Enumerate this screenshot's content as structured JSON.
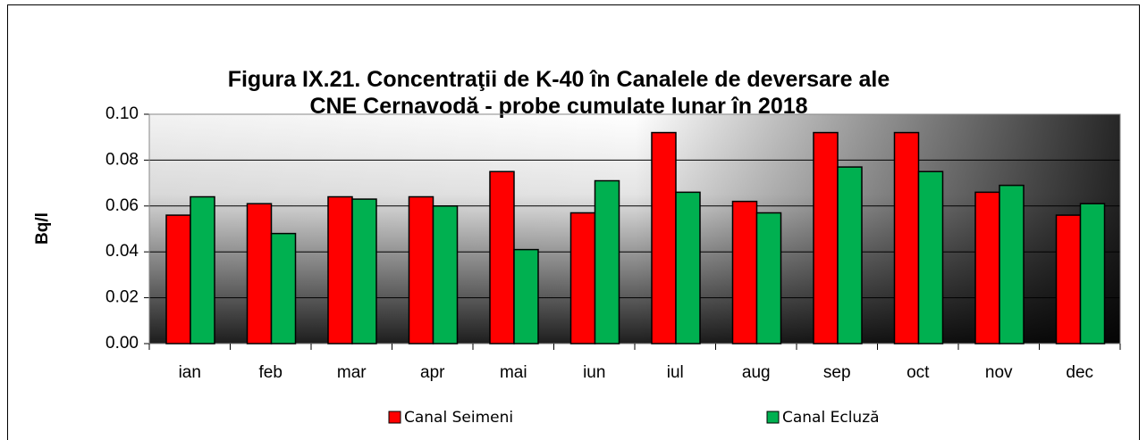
{
  "chart_data": {
    "type": "bar",
    "title": "Figura IX.21. Concentraţii de K-40 în Canalele de deversare ale CNE Cernavodă - probe cumulate lunar  în 2018",
    "y_label": "Bq/l",
    "categories": [
      "ian",
      "feb",
      "mar",
      "apr",
      "mai",
      "iun",
      "iul",
      "aug",
      "sep",
      "oct",
      "nov",
      "dec"
    ],
    "series": [
      {
        "name": "Canal Seimeni",
        "color": "#ff0000",
        "values": [
          0.056,
          0.061,
          0.064,
          0.064,
          0.075,
          0.057,
          0.092,
          0.062,
          0.092,
          0.092,
          0.066,
          0.056
        ]
      },
      {
        "name": "Canal Ecluză",
        "color": "#00b050",
        "values": [
          0.064,
          0.048,
          0.063,
          0.06,
          0.041,
          0.071,
          0.066,
          0.057,
          0.077,
          0.075,
          0.069,
          0.061
        ]
      }
    ],
    "ylim": [
      0,
      0.1
    ],
    "yticks": [
      {
        "value": 0,
        "label": "0.00"
      },
      {
        "value": 0.02,
        "label": "0.02"
      },
      {
        "value": 0.04,
        "label": "0.04"
      },
      {
        "value": 0.06,
        "label": "0.06"
      },
      {
        "value": 0.08,
        "label": "0.08"
      },
      {
        "value": 0.1,
        "label": "0.10"
      }
    ],
    "grid": true,
    "legend": "bottom"
  }
}
